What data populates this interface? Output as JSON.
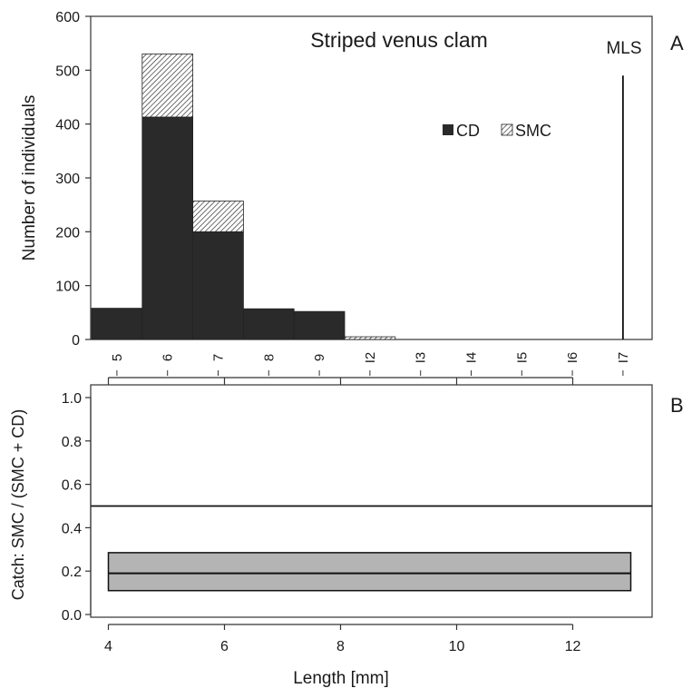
{
  "panel_labels": [
    "A",
    "B"
  ],
  "xlabel": "Length [mm]",
  "chart_data": [
    {
      "type": "bar",
      "title": "Striped venus clam",
      "ylabel": "Number of individuals",
      "ylim": [
        0,
        600
      ],
      "yticks": [
        0,
        100,
        200,
        300,
        400,
        500,
        600
      ],
      "categories": [
        "5",
        "6",
        "7",
        "8",
        "9",
        "I2",
        "I3",
        "I4",
        "I5",
        "I6",
        "I7"
      ],
      "stacked": true,
      "series": [
        {
          "name": "CD",
          "color": "#2a2a2a",
          "pattern": "solid",
          "values": [
            58,
            413,
            200,
            57,
            52,
            0,
            0,
            0,
            0,
            0,
            0
          ]
        },
        {
          "name": "SMC",
          "color": "#ffffff",
          "pattern": "hatched",
          "values": [
            0,
            117,
            57,
            0,
            0,
            5,
            0,
            0,
            0,
            0,
            0
          ]
        }
      ],
      "annotation": {
        "label": "MLS",
        "category": "I7",
        "value": 490
      },
      "legend": "middle-right",
      "grid": false
    },
    {
      "type": "line",
      "ylabel": "Catch:  SMC / (SMC + CD)",
      "xlim": [
        4,
        13
      ],
      "ylim": [
        0,
        1
      ],
      "xticks": [
        4,
        6,
        8,
        10,
        12
      ],
      "yticks": [
        "0.0",
        "0.2",
        "0.4",
        "0.6",
        "0.8",
        "1.0"
      ],
      "reference_line": 0.5,
      "series": [
        {
          "name": "",
          "x": [
            4,
            13
          ],
          "y": [
            0.19,
            0.19
          ],
          "ci_lower": 0.11,
          "ci_upper": 0.285,
          "band_color": "#b4b4b4"
        }
      ],
      "grid": false
    }
  ]
}
